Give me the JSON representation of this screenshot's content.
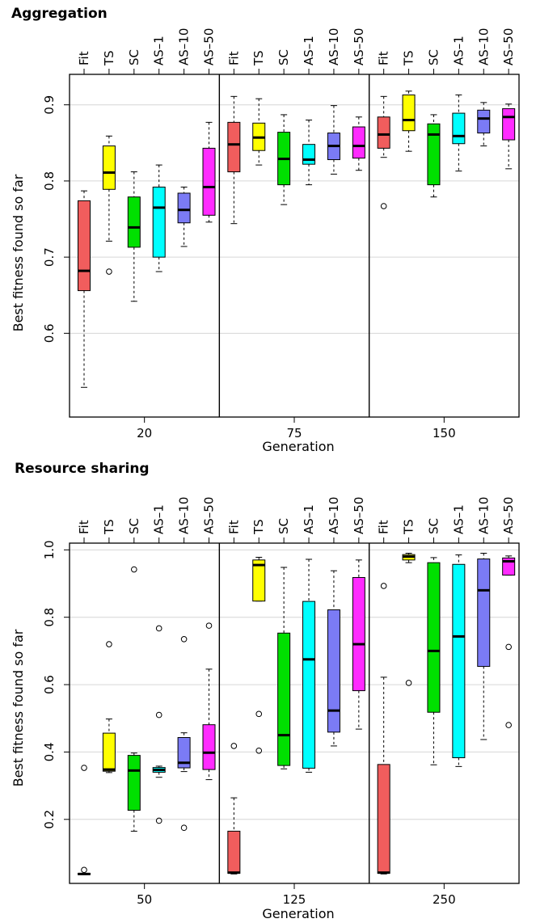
{
  "chart_data": [
    {
      "type": "boxplot",
      "title": "Aggregation",
      "ylabel": "Best fitness found so far",
      "xlabel": "Generation",
      "ylim": [
        0.49,
        0.94
      ],
      "yticks": [
        0.6,
        0.7,
        0.8,
        0.9
      ],
      "yticks_labels": [
        "0.6",
        "0.7",
        "0.8",
        "0.9"
      ],
      "grid": true,
      "methods": [
        "Fit",
        "TS",
        "SC",
        "AS–1",
        "AS–10",
        "AS–50"
      ],
      "generations": [
        "20",
        "75",
        "150"
      ],
      "groups": [
        {
          "generation": "20",
          "boxes": [
            {
              "method": "Fit",
              "min": 0.529,
              "q1": 0.656,
              "median": 0.682,
              "q3": 0.774,
              "max": 0.787,
              "outliers": []
            },
            {
              "method": "TS",
              "min": 0.721,
              "q1": 0.789,
              "median": 0.811,
              "q3": 0.846,
              "max": 0.859,
              "outliers": [
                0.681
              ]
            },
            {
              "method": "SC",
              "min": 0.642,
              "q1": 0.713,
              "median": 0.739,
              "q3": 0.779,
              "max": 0.812,
              "outliers": []
            },
            {
              "method": "AS–1",
              "min": 0.681,
              "q1": 0.7,
              "median": 0.765,
              "q3": 0.792,
              "max": 0.821,
              "outliers": []
            },
            {
              "method": "AS–10",
              "min": 0.714,
              "q1": 0.745,
              "median": 0.762,
              "q3": 0.784,
              "max": 0.792,
              "outliers": []
            },
            {
              "method": "AS–50",
              "min": 0.746,
              "q1": 0.755,
              "median": 0.792,
              "q3": 0.843,
              "max": 0.877,
              "outliers": []
            }
          ]
        },
        {
          "generation": "75",
          "boxes": [
            {
              "method": "Fit",
              "min": 0.744,
              "q1": 0.812,
              "median": 0.848,
              "q3": 0.877,
              "max": 0.911,
              "outliers": []
            },
            {
              "method": "TS",
              "min": 0.821,
              "q1": 0.84,
              "median": 0.857,
              "q3": 0.876,
              "max": 0.908,
              "outliers": []
            },
            {
              "method": "SC",
              "min": 0.769,
              "q1": 0.795,
              "median": 0.829,
              "q3": 0.864,
              "max": 0.887,
              "outliers": []
            },
            {
              "method": "AS–1",
              "min": 0.795,
              "q1": 0.822,
              "median": 0.828,
              "q3": 0.848,
              "max": 0.88,
              "outliers": []
            },
            {
              "method": "AS–10",
              "min": 0.809,
              "q1": 0.828,
              "median": 0.846,
              "q3": 0.863,
              "max": 0.899,
              "outliers": []
            },
            {
              "method": "AS–50",
              "min": 0.814,
              "q1": 0.83,
              "median": 0.846,
              "q3": 0.871,
              "max": 0.884,
              "outliers": []
            }
          ]
        },
        {
          "generation": "150",
          "boxes": [
            {
              "method": "Fit",
              "min": 0.831,
              "q1": 0.843,
              "median": 0.861,
              "q3": 0.884,
              "max": 0.911,
              "outliers": [
                0.767
              ]
            },
            {
              "method": "TS",
              "min": 0.839,
              "q1": 0.866,
              "median": 0.88,
              "q3": 0.913,
              "max": 0.918,
              "outliers": []
            },
            {
              "method": "SC",
              "min": 0.779,
              "q1": 0.795,
              "median": 0.861,
              "q3": 0.875,
              "max": 0.887,
              "outliers": []
            },
            {
              "method": "AS–1",
              "min": 0.813,
              "q1": 0.849,
              "median": 0.859,
              "q3": 0.889,
              "max": 0.913,
              "outliers": []
            },
            {
              "method": "AS–10",
              "min": 0.846,
              "q1": 0.863,
              "median": 0.882,
              "q3": 0.893,
              "max": 0.903,
              "outliers": []
            },
            {
              "method": "AS–50",
              "min": 0.816,
              "q1": 0.854,
              "median": 0.884,
              "q3": 0.895,
              "max": 0.901,
              "outliers": []
            }
          ]
        }
      ]
    },
    {
      "type": "boxplot",
      "title": "Resource sharing",
      "ylabel": "Best fitness found so far",
      "xlabel": "Generation",
      "ylim": [
        0.01,
        1.02
      ],
      "yticks": [
        0.2,
        0.4,
        0.6,
        0.8,
        1.0
      ],
      "yticks_labels": [
        "0.2",
        "0.4",
        "0.6",
        "0.8",
        "1.0"
      ],
      "grid": true,
      "methods": [
        "Fit",
        "TS",
        "SC",
        "AS–1",
        "AS–10",
        "AS–50"
      ],
      "generations": [
        "50",
        "125",
        "250"
      ],
      "groups": [
        {
          "generation": "50",
          "boxes": [
            {
              "method": "Fit",
              "min": 0.036,
              "q1": 0.036,
              "median": 0.038,
              "q3": 0.04,
              "max": 0.04,
              "outliers": [
                0.353,
                0.05
              ]
            },
            {
              "method": "TS",
              "min": 0.339,
              "q1": 0.343,
              "median": 0.348,
              "q3": 0.456,
              "max": 0.498,
              "outliers": [
                0.72
              ]
            },
            {
              "method": "SC",
              "min": 0.165,
              "q1": 0.227,
              "median": 0.345,
              "q3": 0.39,
              "max": 0.397,
              "outliers": [
                0.942
              ]
            },
            {
              "method": "AS–1",
              "min": 0.325,
              "q1": 0.34,
              "median": 0.347,
              "q3": 0.354,
              "max": 0.358,
              "outliers": [
                0.767,
                0.51,
                0.196
              ]
            },
            {
              "method": "AS–10",
              "min": 0.342,
              "q1": 0.353,
              "median": 0.368,
              "q3": 0.443,
              "max": 0.457,
              "outliers": [
                0.735,
                0.175
              ]
            },
            {
              "method": "AS–50",
              "min": 0.318,
              "q1": 0.348,
              "median": 0.398,
              "q3": 0.481,
              "max": 0.646,
              "outliers": [
                0.775
              ]
            }
          ]
        },
        {
          "generation": "125",
          "boxes": [
            {
              "method": "Fit",
              "min": 0.038,
              "q1": 0.04,
              "median": 0.042,
              "q3": 0.165,
              "max": 0.264,
              "outliers": [
                0.418
              ]
            },
            {
              "method": "TS",
              "min": 0.848,
              "q1": 0.848,
              "median": 0.955,
              "q3": 0.97,
              "max": 0.978,
              "outliers": [
                0.513,
                0.404
              ]
            },
            {
              "method": "SC",
              "min": 0.35,
              "q1": 0.36,
              "median": 0.45,
              "q3": 0.753,
              "max": 0.948,
              "outliers": []
            },
            {
              "method": "AS–1",
              "min": 0.34,
              "q1": 0.352,
              "median": 0.675,
              "q3": 0.847,
              "max": 0.972,
              "outliers": []
            },
            {
              "method": "AS–10",
              "min": 0.418,
              "q1": 0.459,
              "median": 0.523,
              "q3": 0.822,
              "max": 0.938,
              "outliers": []
            },
            {
              "method": "AS–50",
              "min": 0.468,
              "q1": 0.582,
              "median": 0.72,
              "q3": 0.918,
              "max": 0.97,
              "outliers": []
            }
          ]
        },
        {
          "generation": "250",
          "boxes": [
            {
              "method": "Fit",
              "min": 0.038,
              "q1": 0.04,
              "median": 0.042,
              "q3": 0.363,
              "max": 0.622,
              "outliers": [
                0.893
              ]
            },
            {
              "method": "TS",
              "min": 0.962,
              "q1": 0.97,
              "median": 0.98,
              "q3": 0.986,
              "max": 0.99,
              "outliers": [
                0.605
              ]
            },
            {
              "method": "SC",
              "min": 0.362,
              "q1": 0.518,
              "median": 0.7,
              "q3": 0.962,
              "max": 0.977,
              "outliers": []
            },
            {
              "method": "AS–1",
              "min": 0.357,
              "q1": 0.383,
              "median": 0.743,
              "q3": 0.957,
              "max": 0.985,
              "outliers": []
            },
            {
              "method": "AS–10",
              "min": 0.437,
              "q1": 0.654,
              "median": 0.88,
              "q3": 0.973,
              "max": 0.99,
              "outliers": []
            },
            {
              "method": "AS–50",
              "min": 0.925,
              "q1": 0.925,
              "median": 0.966,
              "q3": 0.976,
              "max": 0.982,
              "outliers": [
                0.712,
                0.48
              ]
            }
          ]
        }
      ]
    }
  ],
  "colors": {
    "Fit": "#f15d5d",
    "TS": "#ffff00",
    "SC": "#00e000",
    "AS–1": "#00ffff",
    "AS–10": "#7b7bf5",
    "AS–50": "#ff2bff",
    "grid": "#d6d6d6"
  }
}
